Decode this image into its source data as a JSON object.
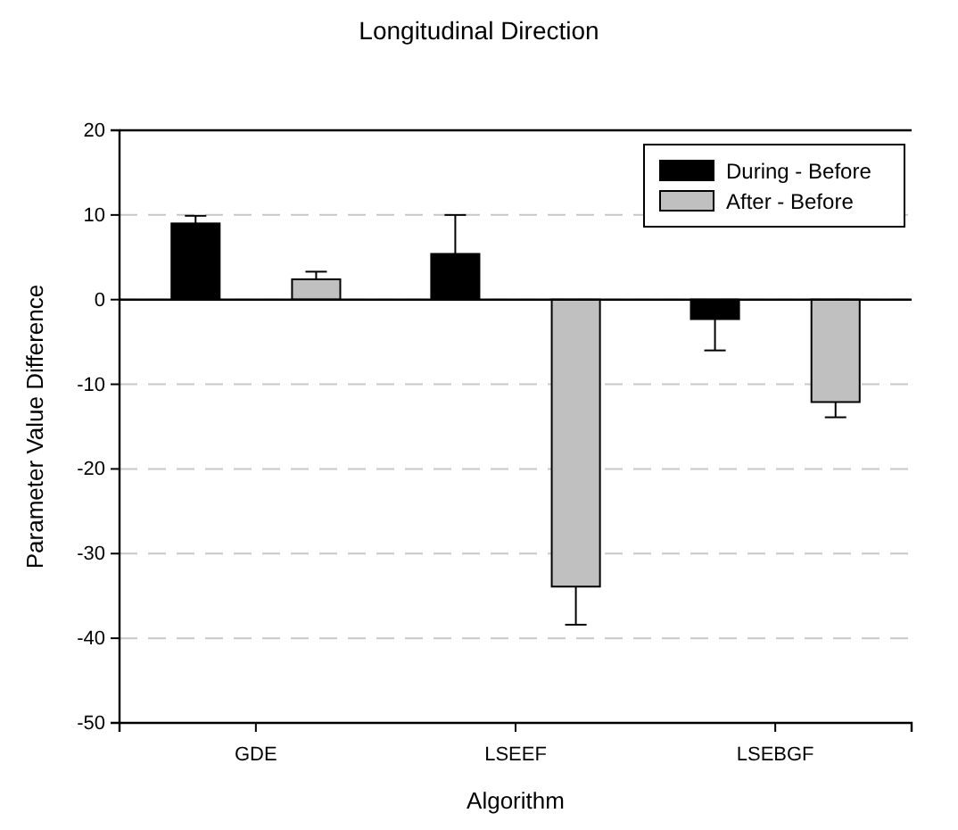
{
  "chart_data": {
    "type": "bar",
    "title": "Longitudinal Direction",
    "xlabel": "Algorithm",
    "ylabel": "Parameter Value Difference",
    "categories": [
      "GDE",
      "LSEEF",
      "LSEBGF"
    ],
    "series": [
      {
        "name": "During - Before",
        "color": "#000000",
        "values": [
          9.0,
          5.4,
          -2.3
        ],
        "errors": [
          [
            9.0,
            9.9
          ],
          [
            5.4,
            10.0
          ],
          [
            -6.0,
            -2.3
          ]
        ]
      },
      {
        "name": "After - Before",
        "color": "#c0c0c0",
        "values": [
          2.4,
          -33.9,
          -12.1
        ],
        "errors": [
          [
            2.4,
            3.3
          ],
          [
            -38.4,
            -33.9
          ],
          [
            -13.9,
            -12.1
          ]
        ]
      }
    ],
    "ylim": [
      -50,
      20
    ],
    "yticks": [
      -50,
      -40,
      -30,
      -20,
      -10,
      0,
      10,
      20
    ],
    "grid": "y",
    "legend": "top right",
    "ref_lines": [
      {
        "axis": "y",
        "value": 0,
        "label": null,
        "color": "#000000",
        "line_style": "solid"
      }
    ]
  }
}
